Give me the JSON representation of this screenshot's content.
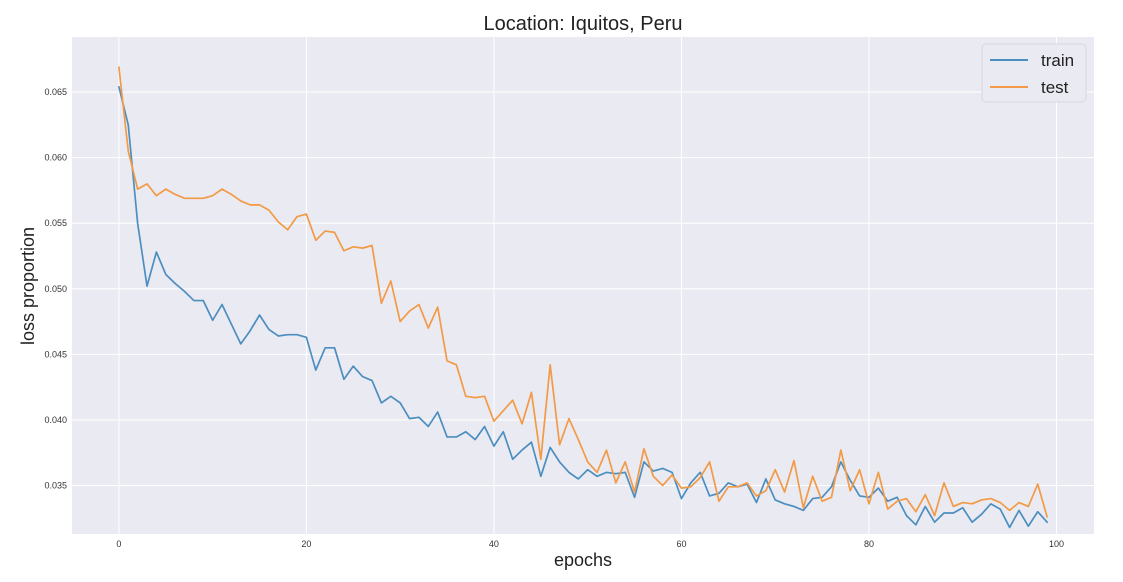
{
  "chart_data": {
    "type": "line",
    "title": "Location: Iquitos, Peru",
    "xlabel": "epochs",
    "ylabel": "loss proportion",
    "xlim": [
      -5,
      104
    ],
    "ylim": [
      0.0313,
      0.0692
    ],
    "xticks": [
      0,
      20,
      40,
      60,
      80,
      100
    ],
    "yticks": [
      0.035,
      0.04,
      0.045,
      0.05,
      0.055,
      0.06,
      0.065
    ],
    "xtick_labels": [
      "0",
      "20",
      "40",
      "60",
      "80",
      "100"
    ],
    "ytick_labels": [
      "0.035",
      "0.040",
      "0.045",
      "0.050",
      "0.055",
      "0.060",
      "0.065"
    ],
    "grid": true,
    "legend_position": "top-right",
    "colors": {
      "plot_background": "#eaeaf2",
      "grid": "#ffffff",
      "train": "#4c8ebf",
      "test": "#f39a46"
    },
    "x": [
      0,
      1,
      2,
      3,
      4,
      5,
      6,
      7,
      8,
      9,
      10,
      11,
      12,
      13,
      14,
      15,
      16,
      17,
      18,
      19,
      20,
      21,
      22,
      23,
      24,
      25,
      26,
      27,
      28,
      29,
      30,
      31,
      32,
      33,
      34,
      35,
      36,
      37,
      38,
      39,
      40,
      41,
      42,
      43,
      44,
      45,
      46,
      47,
      48,
      49,
      50,
      51,
      52,
      53,
      54,
      55,
      56,
      57,
      58,
      59,
      60,
      61,
      62,
      63,
      64,
      65,
      66,
      67,
      68,
      69,
      70,
      71,
      72,
      73,
      74,
      75,
      76,
      77,
      78,
      79,
      80,
      81,
      82,
      83,
      84,
      85,
      86,
      87,
      88,
      89,
      90,
      91,
      92,
      93,
      94,
      95,
      96,
      97,
      98,
      99
    ],
    "series": [
      {
        "name": "train",
        "values": [
          0.0654,
          0.0625,
          0.055,
          0.0502,
          0.0528,
          0.0511,
          0.0504,
          0.0498,
          0.0491,
          0.0491,
          0.0476,
          0.0488,
          0.0473,
          0.0458,
          0.0468,
          0.048,
          0.0469,
          0.0464,
          0.0465,
          0.0465,
          0.0463,
          0.0438,
          0.0455,
          0.0455,
          0.0431,
          0.0441,
          0.0433,
          0.043,
          0.0413,
          0.0418,
          0.0413,
          0.0401,
          0.0402,
          0.0395,
          0.0406,
          0.0387,
          0.0387,
          0.0391,
          0.0385,
          0.0395,
          0.038,
          0.0391,
          0.037,
          0.0377,
          0.0383,
          0.0357,
          0.0379,
          0.0368,
          0.036,
          0.0355,
          0.0362,
          0.0357,
          0.036,
          0.0359,
          0.036,
          0.0341,
          0.0368,
          0.0361,
          0.0363,
          0.036,
          0.034,
          0.0352,
          0.036,
          0.0342,
          0.0344,
          0.0352,
          0.0349,
          0.0351,
          0.0337,
          0.0355,
          0.0339,
          0.0336,
          0.0334,
          0.0331,
          0.034,
          0.0341,
          0.0349,
          0.0368,
          0.0354,
          0.0342,
          0.0341,
          0.0348,
          0.0338,
          0.0341,
          0.0327,
          0.032,
          0.0334,
          0.0322,
          0.0329,
          0.0329,
          0.0333,
          0.0322,
          0.0328,
          0.0336,
          0.0332,
          0.0318,
          0.0331,
          0.0319,
          0.033,
          0.0322
        ]
      },
      {
        "name": "test",
        "values": [
          0.0669,
          0.0605,
          0.0576,
          0.058,
          0.0571,
          0.0576,
          0.0572,
          0.0569,
          0.0569,
          0.0569,
          0.0571,
          0.0576,
          0.0572,
          0.0567,
          0.0564,
          0.0564,
          0.056,
          0.0551,
          0.0545,
          0.0555,
          0.0557,
          0.0537,
          0.0544,
          0.0543,
          0.0529,
          0.0532,
          0.0531,
          0.0533,
          0.0489,
          0.0506,
          0.0475,
          0.0483,
          0.0488,
          0.047,
          0.0486,
          0.0445,
          0.0442,
          0.0418,
          0.0417,
          0.0418,
          0.0399,
          0.0407,
          0.0415,
          0.0397,
          0.0421,
          0.037,
          0.0442,
          0.0381,
          0.0401,
          0.0385,
          0.0368,
          0.036,
          0.0377,
          0.0352,
          0.0368,
          0.0345,
          0.0378,
          0.0357,
          0.035,
          0.0358,
          0.0348,
          0.0349,
          0.0356,
          0.0368,
          0.0338,
          0.0349,
          0.0349,
          0.0352,
          0.0342,
          0.0346,
          0.0362,
          0.0345,
          0.0369,
          0.0333,
          0.0357,
          0.0338,
          0.0341,
          0.0377,
          0.0346,
          0.0362,
          0.0336,
          0.036,
          0.0332,
          0.0338,
          0.034,
          0.033,
          0.0343,
          0.0327,
          0.0352,
          0.0334,
          0.0337,
          0.0336,
          0.0339,
          0.034,
          0.0337,
          0.0331,
          0.0337,
          0.0334,
          0.0351,
          0.0326
        ]
      }
    ]
  }
}
